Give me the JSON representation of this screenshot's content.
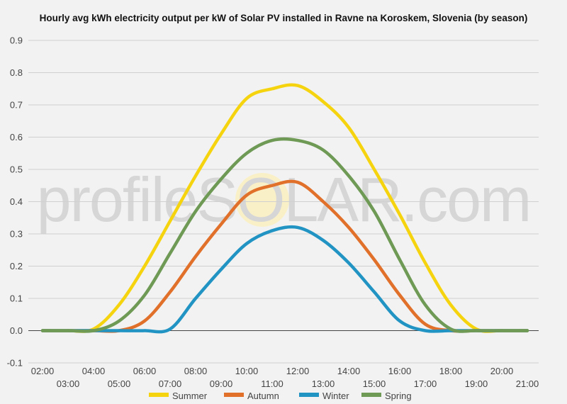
{
  "chart_data": {
    "type": "line",
    "title": "Hourly avg kWh electricity output per kW of Solar PV installed in Ravne na Koroskem, Slovenia (by season)",
    "watermark": "profileSOLAR.com",
    "x": [
      "02:00",
      "03:00",
      "04:00",
      "05:00",
      "06:00",
      "07:00",
      "08:00",
      "09:00",
      "10:00",
      "11:00",
      "12:00",
      "13:00",
      "14:00",
      "15:00",
      "16:00",
      "17:00",
      "18:00",
      "19:00",
      "20:00",
      "21:00"
    ],
    "x_tick_labels_upper": [
      "02:00",
      "04:00",
      "06:00",
      "08:00",
      "10:00",
      "12:00",
      "14:00",
      "16:00",
      "18:00",
      "20:00"
    ],
    "x_tick_labels_lower": [
      "03:00",
      "05:00",
      "07:00",
      "09:00",
      "11:00",
      "13:00",
      "15:00",
      "17:00",
      "19:00",
      "21:00"
    ],
    "ylim": [
      -0.1,
      0.9
    ],
    "yticks": [
      "0.9",
      "0.8",
      "0.7",
      "0.6",
      "0.5",
      "0.4",
      "0.3",
      "0.2",
      "0.1",
      "0.0",
      "-0.1"
    ],
    "grid": true,
    "legend_position": "bottom",
    "series": [
      {
        "name": "Summer",
        "color": "#f5d40f",
        "values": [
          0,
          0,
          0.005,
          0.08,
          0.2,
          0.34,
          0.48,
          0.61,
          0.72,
          0.75,
          0.76,
          0.71,
          0.63,
          0.5,
          0.36,
          0.21,
          0.08,
          0.005,
          0,
          0
        ]
      },
      {
        "name": "Autumn",
        "color": "#e0702a",
        "values": [
          0,
          0,
          0,
          0,
          0.03,
          0.12,
          0.23,
          0.33,
          0.42,
          0.45,
          0.46,
          0.4,
          0.32,
          0.22,
          0.11,
          0.02,
          0,
          0,
          0,
          0
        ]
      },
      {
        "name": "Winter",
        "color": "#2294c4",
        "values": [
          0,
          0,
          0,
          0,
          0,
          0.005,
          0.1,
          0.19,
          0.27,
          0.31,
          0.32,
          0.28,
          0.21,
          0.12,
          0.03,
          0,
          0,
          0,
          0,
          0
        ]
      },
      {
        "name": "Spring",
        "color": "#6e9a55",
        "values": [
          0,
          0,
          0,
          0.03,
          0.11,
          0.24,
          0.37,
          0.47,
          0.55,
          0.59,
          0.59,
          0.56,
          0.48,
          0.37,
          0.22,
          0.08,
          0.005,
          0,
          0,
          0
        ]
      }
    ]
  }
}
